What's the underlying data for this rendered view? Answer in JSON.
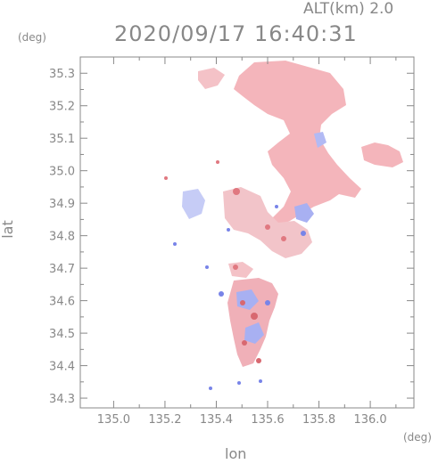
{
  "header": {
    "altitude_label": "ALT(km)  2.0",
    "timestamp": "2020/09/17 16:40:31"
  },
  "axes": {
    "y_unit": "(deg)",
    "x_unit": "(deg)",
    "y_title": "lat",
    "x_title": "lon",
    "y_ticks": [
      "35.3",
      "35.2",
      "35.1",
      "35.0",
      "34.9",
      "34.8",
      "34.7",
      "34.6",
      "34.5",
      "34.4",
      "34.3"
    ],
    "x_ticks": [
      "135.0",
      "135.2",
      "135.4",
      "135.6",
      "135.8",
      "136.0"
    ],
    "lat_range": [
      34.27,
      35.35
    ],
    "lon_range": [
      134.87,
      136.17
    ]
  },
  "colors": {
    "positive_echo": "#f4a8ae",
    "negative_echo": "#9aa4f2",
    "frame": "#888888"
  }
}
